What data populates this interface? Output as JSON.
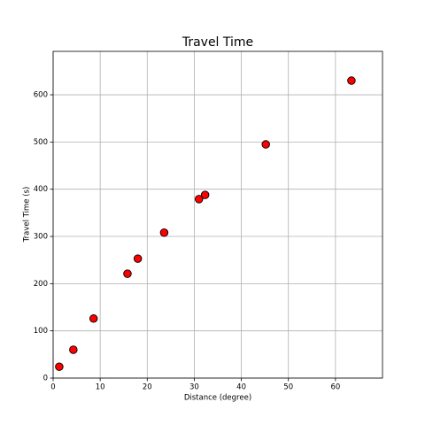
{
  "chart_data": {
    "type": "scatter",
    "title": "Travel Time",
    "x_label": "Distance (degree)",
    "y_label": "Travel Time (s)",
    "x": [
      1.3,
      4.3,
      8.6,
      15.8,
      18.0,
      23.6,
      31.0,
      32.3,
      45.2,
      63.4
    ],
    "values": [
      24,
      60,
      126,
      221,
      253,
      308,
      379,
      388,
      495,
      630
    ],
    "color": "#ff0000",
    "edge_color": "#000000",
    "xlim": [
      0,
      70
    ],
    "ylim": [
      0,
      692
    ],
    "xticks": [
      0,
      10,
      20,
      30,
      40,
      50,
      60
    ],
    "yticks": [
      0,
      100,
      200,
      300,
      400,
      500,
      600
    ],
    "grid": true
  }
}
